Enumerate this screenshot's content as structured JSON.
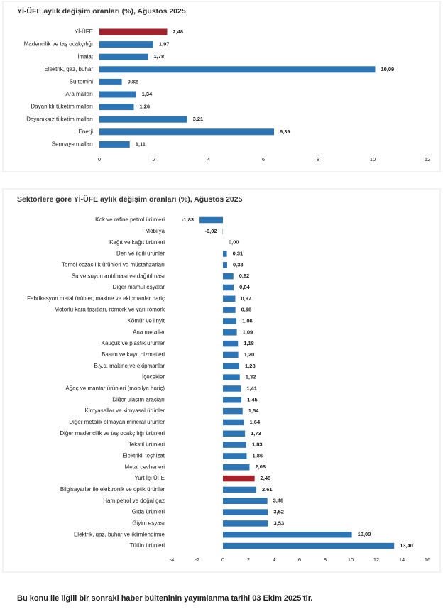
{
  "chart_data": [
    {
      "type": "barh",
      "title": "Yİ-ÜFE aylık değişim oranları (%), Ağustos 2025",
      "categories": [
        "Yİ-ÜFE",
        "Madencilik ve taş ocakçılığı",
        "İmalat",
        "Elektrik, gaz, buhar",
        "Su temini",
        "Ara malları",
        "Dayanıklı tüketim malları",
        "Dayanıksız tüketim malları",
        "Enerji",
        "Sermaye malları"
      ],
      "values": [
        2.48,
        1.97,
        1.78,
        10.09,
        0.82,
        1.34,
        1.26,
        3.21,
        6.39,
        1.11
      ],
      "value_labels": [
        "2,48",
        "1,97",
        "1,78",
        "10,09",
        "0,82",
        "1,34",
        "1,26",
        "3,21",
        "6,39",
        "1,11"
      ],
      "colors": [
        "#a5222c",
        "#2e75b6",
        "#2e75b6",
        "#2e75b6",
        "#2e75b6",
        "#2e75b6",
        "#2e75b6",
        "#2e75b6",
        "#2e75b6",
        "#2e75b6"
      ],
      "xlim": [
        0,
        12
      ],
      "xticks": [
        0,
        2,
        4,
        6,
        8,
        10,
        12
      ]
    },
    {
      "type": "barh",
      "title": "Sektörlere göre Yİ-ÜFE aylık değişim oranları (%), Ağustos 2025",
      "categories": [
        "Kok ve rafine petrol ürünleri",
        "Mobilya",
        "Kağıt ve kağıt ürünleri",
        "Deri ve ilgili ürünler",
        "Temel eczacılık ürünleri ve müstahzarları",
        "Su ve suyun arıtılması ve dağıtılması",
        "Diğer mamul eşyalar",
        "Fabrikasyon metal ürünler, makine ve ekipmanlar hariç",
        "Motorlu kara taşıtları, römork ve yarı römork",
        "Kömür ve linyit",
        "Ana metaller",
        "Kauçuk ve plastik ürünler",
        "Basım ve kayıt hizmetleri",
        "B.y.s. makine ve ekipmanlar",
        "İçecekler",
        "Ağaç ve mantar ürünleri (mobilya hariç)",
        "Diğer ulaşım araçları",
        "Kimyasallar ve kimyasal ürünler",
        "Diğer metalik olmayan mineral ürünler",
        "Diğer madencilik ve taş ocakçılığı ürünleri",
        "Tekstil ürünleri",
        "Elektrikli teçhizat",
        "Metal cevherleri",
        "Yurt İçi ÜFE",
        "Bilgisayarlar ile elektronik ve optik ürünler",
        "Ham petrol ve doğal gaz",
        "Gıda ürünleri",
        "Giyim eşyası",
        "Elektrik, gaz, buhar ve iklimlendirme",
        "Tütün ürünleri"
      ],
      "values": [
        -1.83,
        -0.02,
        0.0,
        0.31,
        0.33,
        0.82,
        0.84,
        0.97,
        0.98,
        1.06,
        1.09,
        1.18,
        1.2,
        1.28,
        1.32,
        1.41,
        1.45,
        1.54,
        1.64,
        1.73,
        1.83,
        1.86,
        2.08,
        2.48,
        2.61,
        3.48,
        3.52,
        3.53,
        10.09,
        13.4
      ],
      "value_labels": [
        "-1,83",
        "-0,02",
        "0,00",
        "0,31",
        "0,33",
        "0,82",
        "0,84",
        "0,97",
        "0,98",
        "1,06",
        "1,09",
        "1,18",
        "1,20",
        "1,28",
        "1,32",
        "1,41",
        "1,45",
        "1,54",
        "1,64",
        "1,73",
        "1,83",
        "1,86",
        "2,08",
        "2,48",
        "2,61",
        "3,48",
        "3,52",
        "3,53",
        "10,09",
        "13,40"
      ],
      "colors": [
        "#2e75b6",
        "#2e75b6",
        "#2e75b6",
        "#2e75b6",
        "#2e75b6",
        "#2e75b6",
        "#2e75b6",
        "#2e75b6",
        "#2e75b6",
        "#2e75b6",
        "#2e75b6",
        "#2e75b6",
        "#2e75b6",
        "#2e75b6",
        "#2e75b6",
        "#2e75b6",
        "#2e75b6",
        "#2e75b6",
        "#2e75b6",
        "#2e75b6",
        "#2e75b6",
        "#2e75b6",
        "#2e75b6",
        "#a5222c",
        "#2e75b6",
        "#2e75b6",
        "#2e75b6",
        "#2e75b6",
        "#2e75b6",
        "#2e75b6"
      ],
      "xlim": [
        -4,
        16
      ],
      "xticks": [
        -4,
        -2,
        0,
        2,
        4,
        6,
        8,
        10,
        12,
        14,
        16
      ]
    }
  ],
  "footer_note": "Bu konu ile ilgili bir sonraki haber bülteninin yayımlanma tarihi 03 Ekim 2025'tir."
}
